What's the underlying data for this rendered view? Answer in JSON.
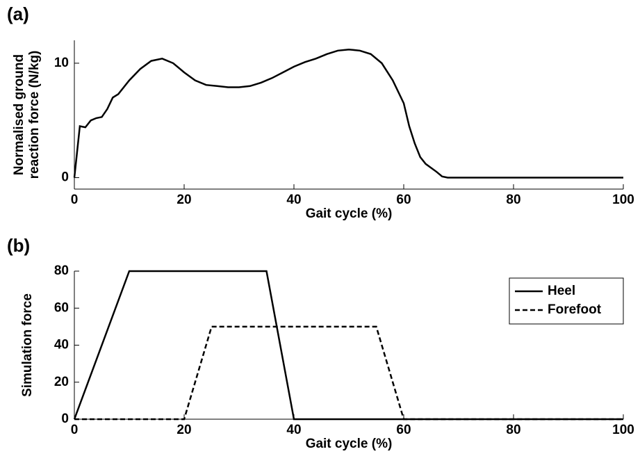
{
  "chart_data": [
    {
      "type": "line",
      "panel_label": "(a)",
      "x_label": "Gait cycle (%)",
      "y_label": [
        "Normalised ground",
        "reaction force (N/kg)"
      ],
      "xlim": [
        0,
        100
      ],
      "ylim": [
        -1,
        12
      ],
      "xticks": [
        0,
        20,
        40,
        60,
        80,
        100
      ],
      "yticks": [
        0,
        10
      ],
      "series": [
        {
          "color": "#000000",
          "style": "solid",
          "x": [
            0,
            1,
            2,
            3,
            4,
            5,
            6,
            7,
            8,
            10,
            12,
            14,
            16,
            18,
            20,
            22,
            24,
            26,
            28,
            30,
            32,
            34,
            36,
            38,
            40,
            42,
            44,
            46,
            48,
            50,
            52,
            54,
            56,
            58,
            60,
            61,
            62,
            63,
            64,
            66,
            67,
            68,
            100
          ],
          "values": [
            0,
            4.5,
            4.4,
            5,
            5.2,
            5.3,
            6,
            7,
            7.3,
            8.5,
            9.5,
            10.2,
            10.4,
            10,
            9.2,
            8.5,
            8.1,
            8,
            7.9,
            7.9,
            8,
            8.3,
            8.7,
            9.2,
            9.7,
            10.1,
            10.4,
            10.8,
            11.1,
            11.2,
            11.1,
            10.8,
            10,
            8.5,
            6.5,
            4.5,
            3,
            1.8,
            1.2,
            0.5,
            0.1,
            0,
            0
          ]
        }
      ]
    },
    {
      "type": "line",
      "panel_label": "(b)",
      "x_label": "Gait cycle (%)",
      "y_label": [
        "Simulation force"
      ],
      "xlim": [
        0,
        100
      ],
      "ylim": [
        0,
        80
      ],
      "xticks": [
        0,
        20,
        40,
        60,
        80,
        100
      ],
      "yticks": [
        0,
        20,
        40,
        60,
        80
      ],
      "legend": "upper right",
      "series": [
        {
          "name": "Heel",
          "color": "#000000",
          "style": "solid",
          "x": [
            0,
            10,
            35,
            40,
            100
          ],
          "values": [
            0,
            80,
            80,
            0,
            0
          ]
        },
        {
          "name": "Forefoot",
          "color": "#000000",
          "style": "dashed",
          "x": [
            0,
            20,
            25,
            55,
            60,
            100
          ],
          "values": [
            0,
            0,
            50,
            50,
            0,
            0
          ]
        }
      ]
    }
  ]
}
